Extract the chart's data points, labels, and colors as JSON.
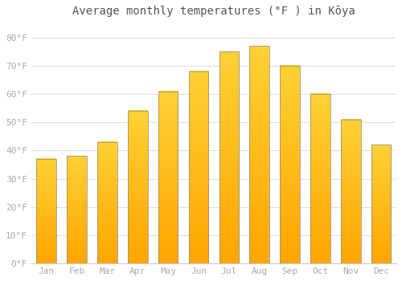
{
  "months": [
    "Jan",
    "Feb",
    "Mar",
    "Apr",
    "May",
    "Jun",
    "Jul",
    "Aug",
    "Sep",
    "Oct",
    "Nov",
    "Dec"
  ],
  "values": [
    37,
    38,
    43,
    54,
    61,
    68,
    75,
    77,
    70,
    60,
    51,
    42
  ],
  "bar_color_main": "#FFA500",
  "bar_color_light": "#FFD055",
  "title": "Average monthly temperatures (°F ) in Kōya",
  "ylim": [
    0,
    85
  ],
  "yticks": [
    0,
    10,
    20,
    30,
    40,
    50,
    60,
    70,
    80
  ],
  "ytick_labels": [
    "0°F",
    "10°F",
    "20°F",
    "30°F",
    "40°F",
    "50°F",
    "60°F",
    "70°F",
    "80°F"
  ],
  "background_color": "#ffffff",
  "grid_color": "#e0e0e0",
  "title_fontsize": 10,
  "tick_fontsize": 8,
  "bar_edge_color": "#888888",
  "bar_edge_width": 0.5
}
